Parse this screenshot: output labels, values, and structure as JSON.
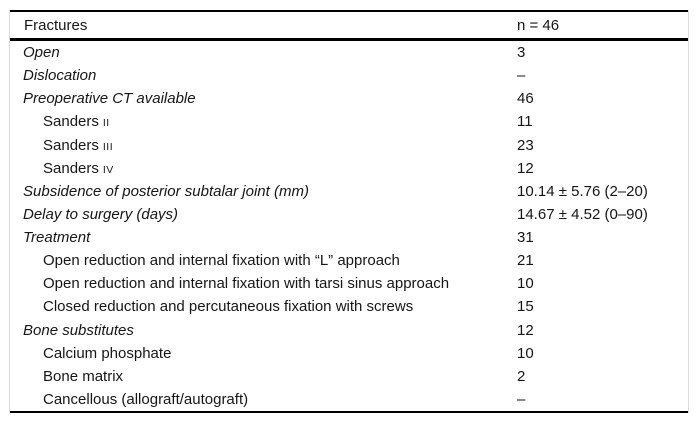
{
  "table": {
    "header": {
      "col1": "Fractures",
      "col2": "n = 46"
    },
    "rows": [
      {
        "label": "Open",
        "value": "3",
        "style": "category"
      },
      {
        "label": "Dislocation",
        "value": "–",
        "style": "category"
      },
      {
        "label": "Preoperative CT available",
        "value": "46",
        "style": "category"
      },
      {
        "label": "Sanders",
        "suffix": "II",
        "value": "11",
        "style": "sub"
      },
      {
        "label": "Sanders",
        "suffix": "III",
        "value": "23",
        "style": "sub"
      },
      {
        "label": "Sanders",
        "suffix": "IV",
        "value": "12",
        "style": "sub"
      },
      {
        "label": "Subsidence of posterior subtalar joint (mm)",
        "value": "10.14 ± 5.76 (2–20)",
        "style": "category"
      },
      {
        "label": "Delay to surgery (days)",
        "value": "14.67 ± 4.52 (0–90)",
        "style": "category"
      },
      {
        "label": "Treatment",
        "value": "31",
        "style": "category"
      },
      {
        "label": "Open reduction and internal fixation with “L” approach",
        "value": "21",
        "style": "sub"
      },
      {
        "label": "Open reduction and internal fixation with tarsi sinus approach",
        "value": "10",
        "style": "sub"
      },
      {
        "label": "Closed reduction and percutaneous fixation with screws",
        "value": "15",
        "style": "sub"
      },
      {
        "label": "Bone substitutes",
        "value": "12",
        "style": "category"
      },
      {
        "label": "Calcium phosphate",
        "value": "10",
        "style": "sub"
      },
      {
        "label": "Bone matrix",
        "value": "2",
        "style": "sub"
      },
      {
        "label": "Cancellous (allograft/autograft)",
        "value": "–",
        "style": "sub"
      }
    ],
    "colors": {
      "rule": "#000000",
      "text": "#161616",
      "edge": "#dcdcdc",
      "background": "#ffffff"
    }
  }
}
